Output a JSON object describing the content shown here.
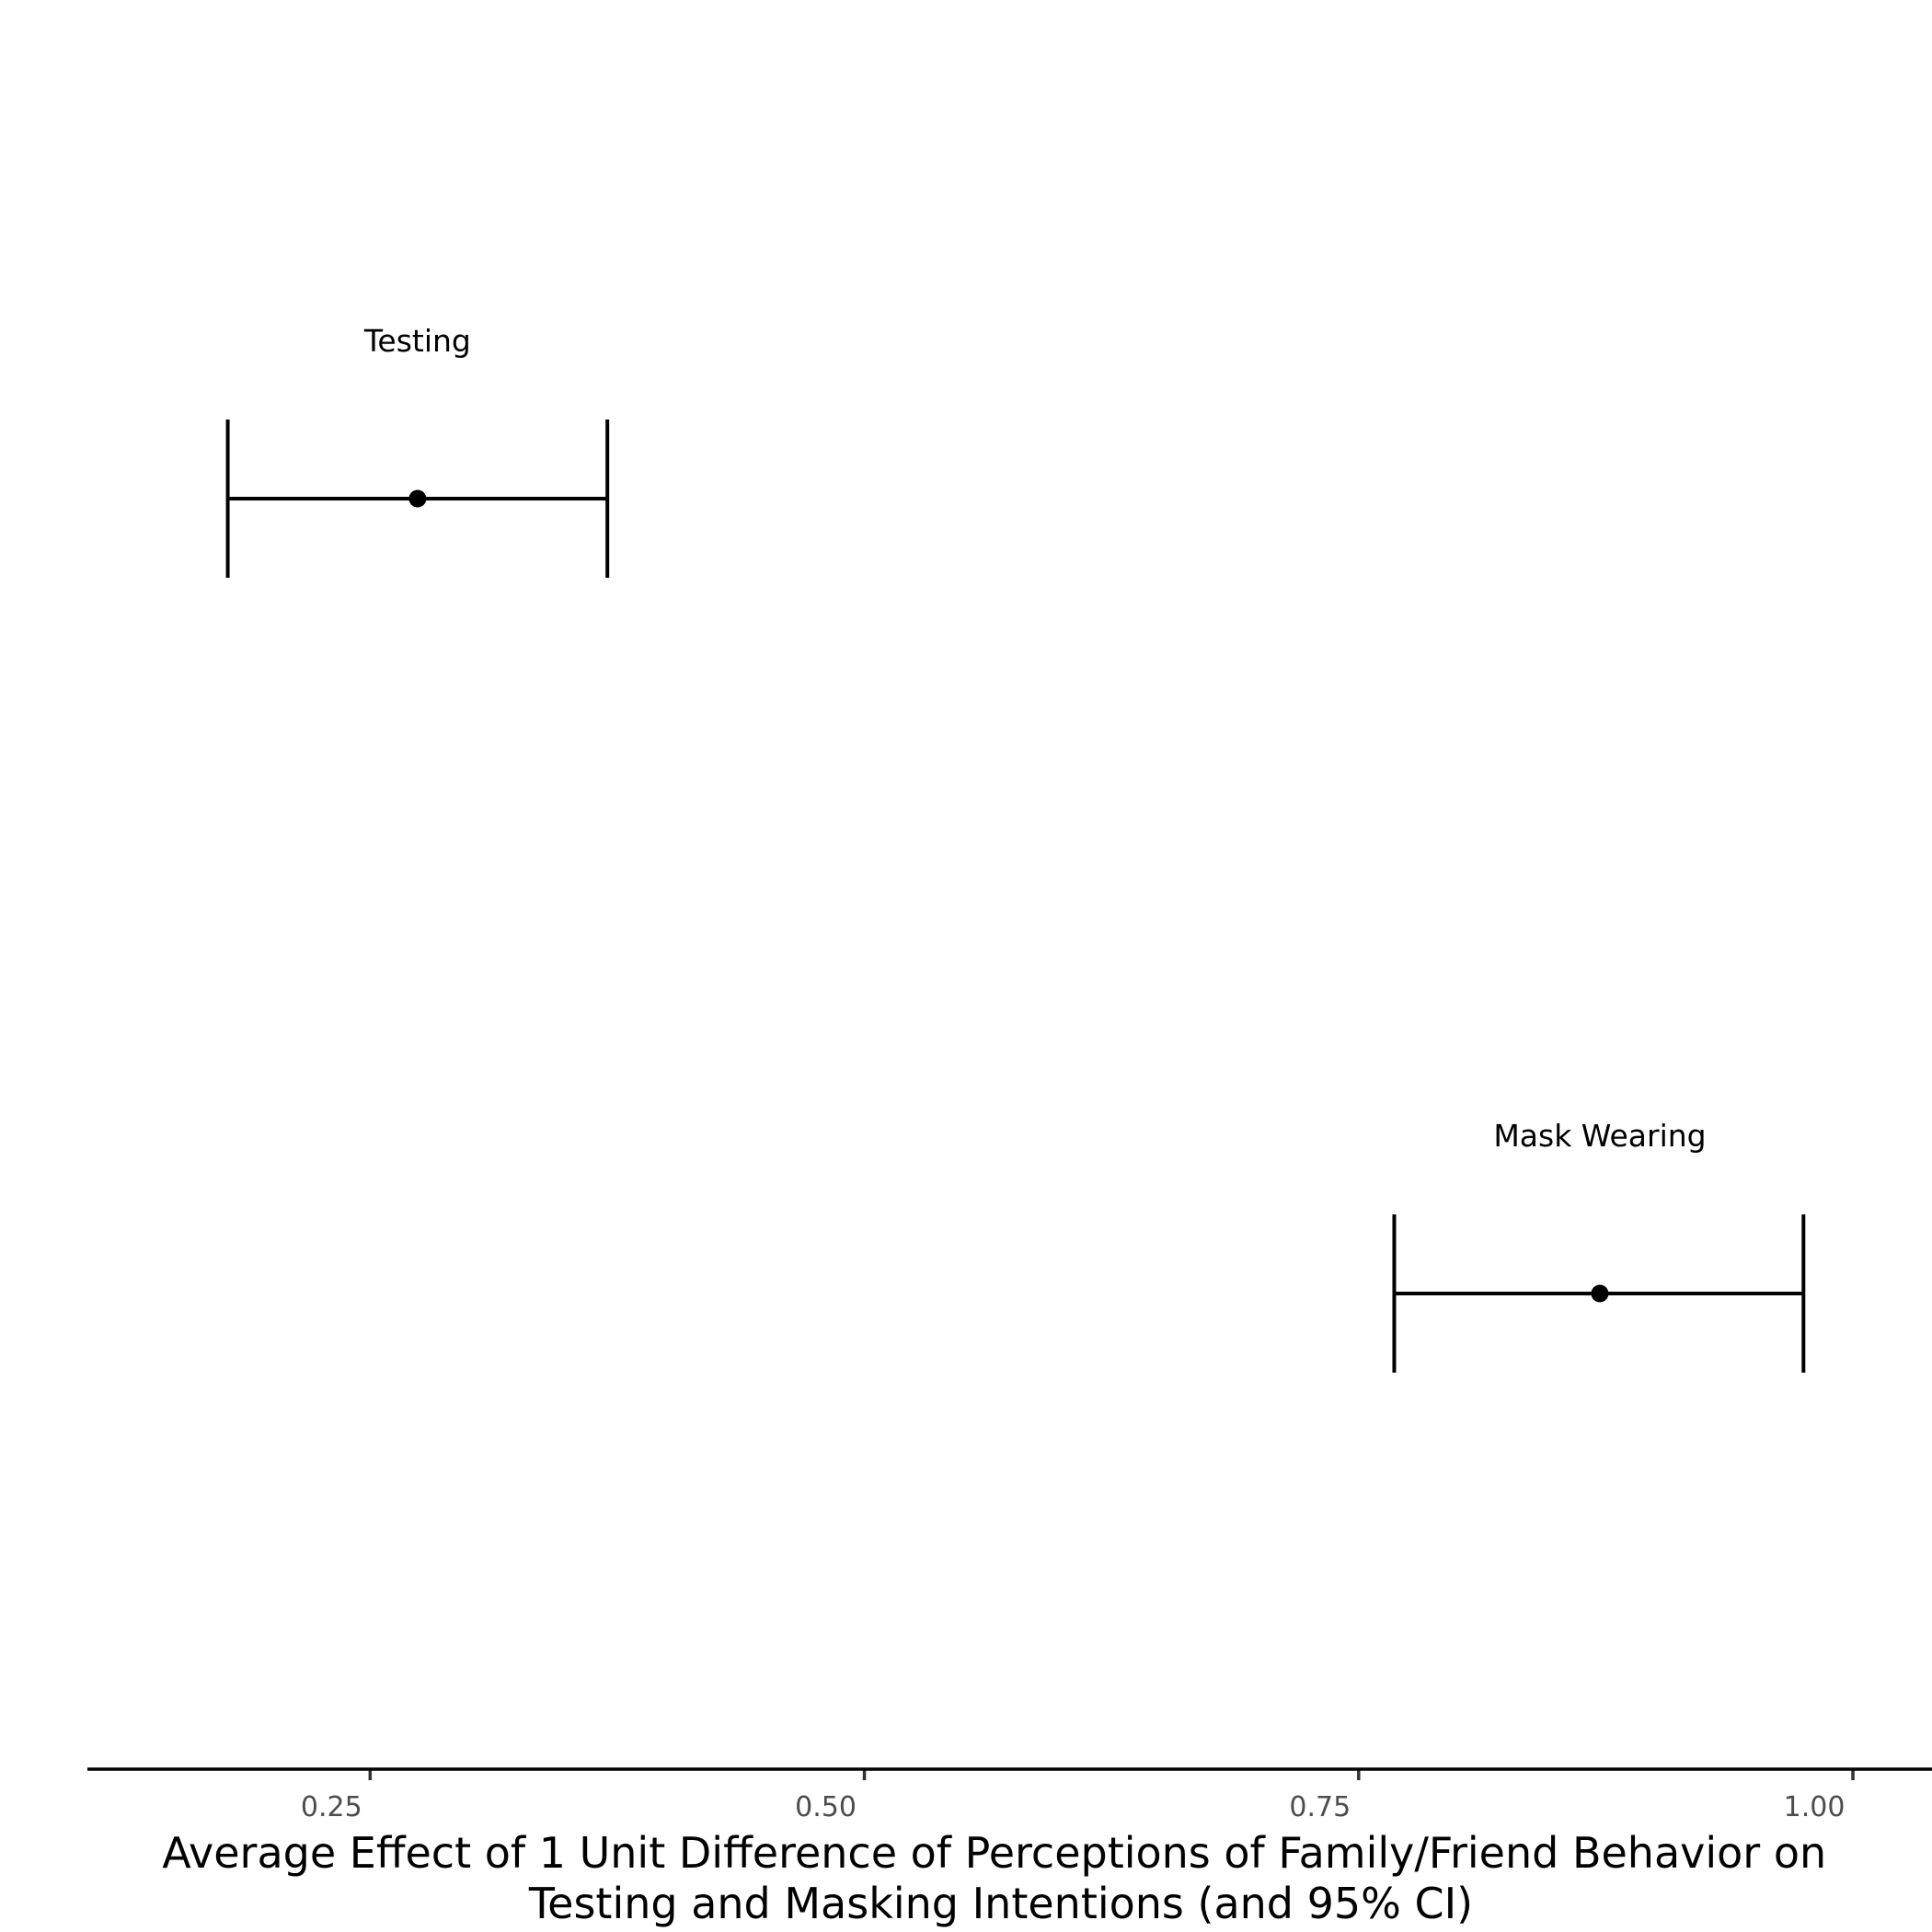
{
  "chart_data": {
    "type": "errorbar",
    "title": "",
    "xlabel_lines": [
      "Average Effect of 1 Unit Difference of Perceptions of Family/Friend Behavior on",
      "Testing and Masking Intentions (and 95% CI)"
    ],
    "ylabel": "",
    "xlim": [
      0.107,
      1.04
    ],
    "xticks": [
      0.25,
      0.5,
      0.75,
      1.0
    ],
    "xtick_labels": [
      "0.25",
      "0.50",
      "0.75",
      "1.00"
    ],
    "grid": false,
    "legend": "none",
    "series": [
      {
        "label": "Testing",
        "estimate": 0.274,
        "ci_low": 0.178,
        "ci_high": 0.37
      },
      {
        "label": "Mask Wearing",
        "estimate": 0.872,
        "ci_low": 0.768,
        "ci_high": 0.975
      }
    ],
    "colors": {
      "marks": "#000000",
      "tick_text": "#4d4d4d",
      "background": "#ffffff"
    }
  }
}
